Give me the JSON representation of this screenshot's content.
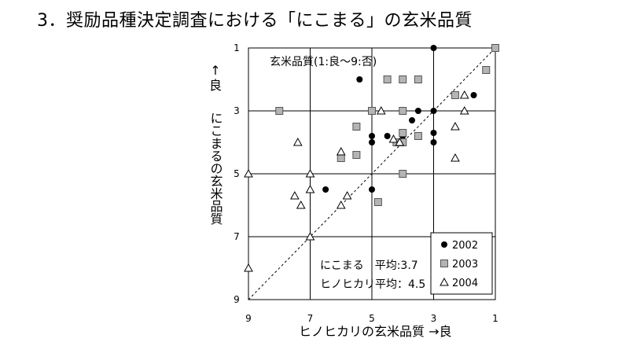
{
  "title": "3．奨励品種決定調査における「にこまる」の玄米品質",
  "chart_data": {
    "type": "scatter",
    "title": "3．奨励品種決定調査における「にこまる」の玄米品質",
    "ylabel_arrow": "↑",
    "ylabel_top": "良",
    "ylabel": "にこまるの玄米品質",
    "xlabel": "ヒノヒカリの玄米品質 →良",
    "xlim": [
      9,
      1
    ],
    "ylim": [
      9,
      1
    ],
    "x_ticks": [
      "9",
      "7",
      "5",
      "3",
      "1"
    ],
    "y_ticks": [
      "1",
      "3",
      "5",
      "7",
      "9"
    ],
    "grid": true,
    "annotation_scale": "玄米品質(1:良～9:否)",
    "annotation_mean_nikomaru": "にこまる　平均:3.7",
    "annotation_mean_hinohikari": "ヒノヒカリ平均：4.5",
    "legend_position": "bottom-right",
    "series": [
      {
        "name": "2002",
        "marker": "filled-circle",
        "color": "#000000",
        "points": [
          [
            3,
            1
          ],
          [
            5.4,
            2
          ],
          [
            3.5,
            2
          ],
          [
            3.5,
            3
          ],
          [
            3,
            3
          ],
          [
            3.7,
            3.3
          ],
          [
            4.5,
            3.8
          ],
          [
            4,
            3.8
          ],
          [
            5,
            3.8
          ],
          [
            3,
            3.7
          ],
          [
            5,
            4
          ],
          [
            3,
            4
          ],
          [
            1.7,
            2.5
          ],
          [
            6.5,
            5.5
          ],
          [
            5,
            5.5
          ]
        ]
      },
      {
        "name": "2003",
        "marker": "gray-square",
        "color": "#b4b4b4",
        "points": [
          [
            1,
            1
          ],
          [
            1.3,
            1.7
          ],
          [
            4.5,
            2
          ],
          [
            4,
            2
          ],
          [
            3.5,
            2
          ],
          [
            8,
            3
          ],
          [
            5,
            3
          ],
          [
            4,
            3
          ],
          [
            5.5,
            3.5
          ],
          [
            4,
            3.7
          ],
          [
            4.2,
            4
          ],
          [
            4,
            4
          ],
          [
            3.5,
            3.8
          ],
          [
            6,
            4.5
          ],
          [
            5.5,
            4.4
          ],
          [
            4,
            5
          ],
          [
            2.3,
            2.5
          ],
          [
            4.8,
            5.9
          ]
        ]
      },
      {
        "name": "2004",
        "marker": "open-triangle",
        "color": "#000000",
        "points": [
          [
            4.7,
            3
          ],
          [
            2,
            2.5
          ],
          [
            2,
            3
          ],
          [
            2.3,
            3.5
          ],
          [
            7.4,
            4
          ],
          [
            6,
            4.3
          ],
          [
            4.3,
            3.9
          ],
          [
            4.1,
            4
          ],
          [
            2.3,
            4.5
          ],
          [
            9,
            5
          ],
          [
            7,
            5
          ],
          [
            7,
            5.5
          ],
          [
            7.5,
            5.7
          ],
          [
            7.3,
            6
          ],
          [
            6,
            6
          ],
          [
            5.8,
            5.7
          ],
          [
            7,
            7
          ],
          [
            9,
            8
          ]
        ]
      }
    ]
  }
}
